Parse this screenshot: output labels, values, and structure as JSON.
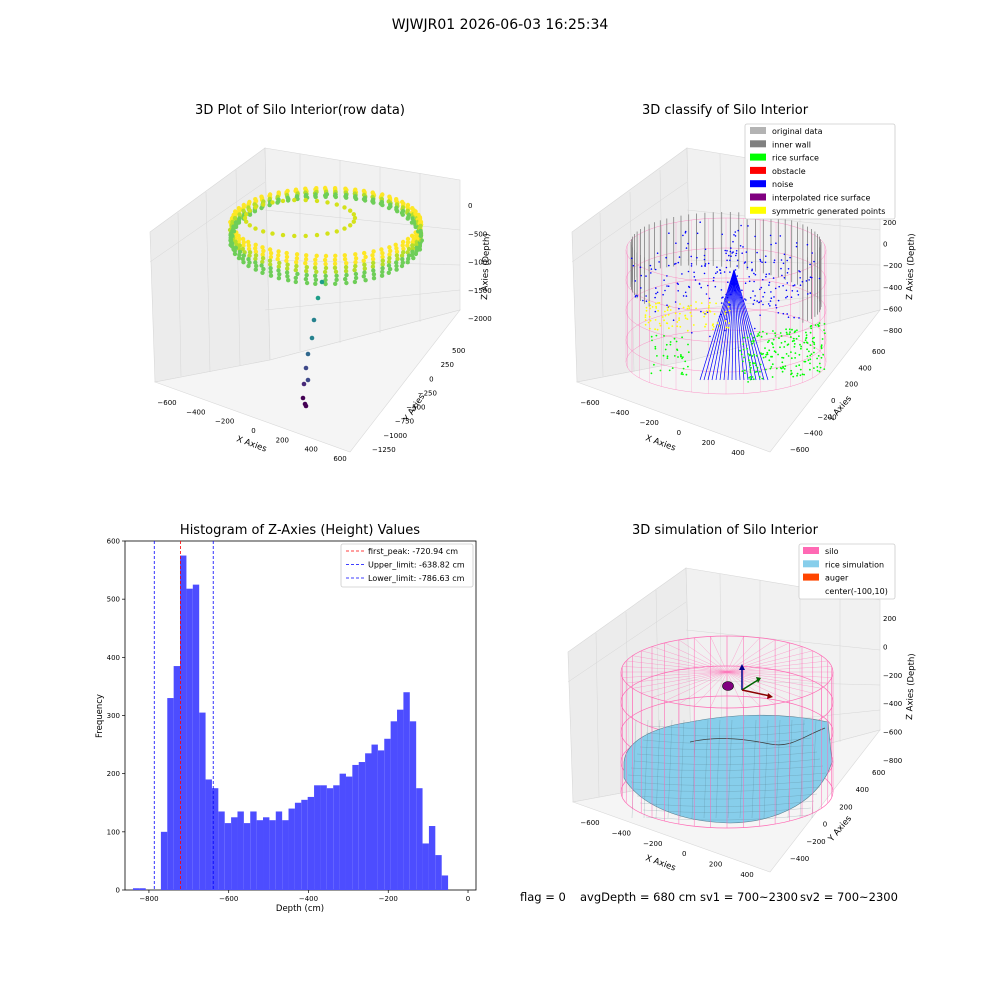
{
  "figure": {
    "suptitle": "WJWJR01 2026-06-03 16:25:34",
    "footer": {
      "flag": "flag = 0",
      "avg_depth": "avgDepth = 680 cm",
      "sv1": "sv1 = 700~2300",
      "sv2": "sv2 = 700~2300"
    }
  },
  "colors": {
    "hist_bar": "#4d4dff",
    "peak_line": "#ff0000",
    "limit_line": "#0000ff",
    "silo": "#ff69b4",
    "rice": "#87ceeb",
    "auger": "#ff4500",
    "inner_wall": "#808080",
    "rice_surface": "#00ff00",
    "noise": "#0000ff",
    "yellow": "#ffff00",
    "purple": "#800080"
  },
  "chart_data": [
    {
      "type": "scatter",
      "title": "3D Plot of Silo Interior(row data)",
      "xlabel": "X Axies",
      "ylabel": "Y Axies",
      "zlabel": "Z Axies (Depth)",
      "x_ticks": [
        "−600",
        "−400",
        "−200",
        "0",
        "200",
        "400",
        "600"
      ],
      "y_ticks": [
        "−1250",
        "−1000",
        "−750",
        "−500",
        "−250",
        "0",
        "250",
        "500"
      ],
      "z_ticks": [
        "−2000",
        "−1500",
        "−1000",
        "−500",
        "0"
      ],
      "colormap": "viridis"
    },
    {
      "type": "scatter",
      "title": "3D classify of Silo Interior",
      "xlabel": "X Axies",
      "ylabel": "Y Axies",
      "zlabel": "Z Axies (Depth)",
      "x_ticks": [
        "−600",
        "−400",
        "−200",
        "0",
        "200",
        "400"
      ],
      "y_ticks": [
        "−600",
        "−400",
        "−200",
        "0",
        "200",
        "400",
        "600"
      ],
      "z_ticks": [
        "−800",
        "−600",
        "−400",
        "−200",
        "0",
        "200"
      ],
      "legend": [
        {
          "label": "original data",
          "color": "#b3b3b3"
        },
        {
          "label": "inner wall",
          "color": "#808080"
        },
        {
          "label": "rice surface",
          "color": "#00ff00"
        },
        {
          "label": "obstacle",
          "color": "#ff0000"
        },
        {
          "label": "noise",
          "color": "#0000ff"
        },
        {
          "label": "interpolated rice surface",
          "color": "#800080"
        },
        {
          "label": "symmetric generated points",
          "color": "#ffff00"
        }
      ]
    },
    {
      "type": "bar",
      "title": "Histogram of Z-Axies (Height) Values",
      "xlabel": "Depth (cm)",
      "ylabel": "Frequency",
      "xlim": [
        -860,
        20
      ],
      "ylim": [
        0,
        600
      ],
      "x_ticks": [
        -800,
        -600,
        -400,
        -200,
        0
      ],
      "x_tick_labels": [
        "−800",
        "−600",
        "−400",
        "−200",
        "0"
      ],
      "y_ticks": [
        0,
        100,
        200,
        300,
        400,
        500,
        600
      ],
      "bin_width": 16,
      "bins_start": [
        -770,
        -754,
        -738,
        -722,
        -706,
        -690,
        -674,
        -658,
        -642,
        -626,
        -610,
        -594,
        -578,
        -562,
        -546,
        -530,
        -514,
        -498,
        -482,
        -466,
        -450,
        -434,
        -418,
        -402,
        -386,
        -370,
        -354,
        -338,
        -322,
        -306,
        -290,
        -274,
        -258,
        -242,
        -226,
        -210,
        -194,
        -178,
        -162,
        -146,
        -130,
        -114,
        -98,
        -82,
        -66,
        -50
      ],
      "values": [
        100,
        330,
        385,
        575,
        518,
        525,
        305,
        190,
        175,
        135,
        115,
        125,
        135,
        115,
        135,
        120,
        125,
        120,
        135,
        120,
        140,
        150,
        155,
        160,
        180,
        180,
        175,
        180,
        200,
        195,
        215,
        220,
        235,
        250,
        240,
        260,
        290,
        310,
        340,
        290,
        175,
        80,
        110,
        60,
        25,
        0
      ],
      "tail_bins_start": [
        -840,
        -824
      ],
      "tail_values": [
        3,
        3
      ],
      "lines": [
        {
          "label": "first_peak: -720.94 cm",
          "x": -720.94,
          "color": "#ff0000"
        },
        {
          "label": "Upper_limit: -638.82 cm",
          "x": -638.82,
          "color": "#0000ff"
        },
        {
          "label": "Lower_limit: -786.63 cm",
          "x": -786.63,
          "color": "#0000ff"
        }
      ]
    },
    {
      "type": "area",
      "title": "3D simulation of Silo Interior",
      "xlabel": "X Axies",
      "ylabel": "Y Axies",
      "zlabel": "Z Axies (Depth)",
      "x_ticks": [
        "−600",
        "−400",
        "−200",
        "0",
        "200",
        "400"
      ],
      "y_ticks": [
        "−400",
        "−200",
        "0",
        "200",
        "400",
        "600"
      ],
      "z_ticks": [
        "−800",
        "−600",
        "−400",
        "−200",
        "0",
        "200"
      ],
      "legend": [
        {
          "label": "silo",
          "color": "#ff69b4"
        },
        {
          "label": "rice simulation",
          "color": "#87ceeb"
        },
        {
          "label": "auger",
          "color": "#ff4500"
        },
        {
          "label": "center(-100,10)",
          "color": ""
        }
      ]
    }
  ]
}
